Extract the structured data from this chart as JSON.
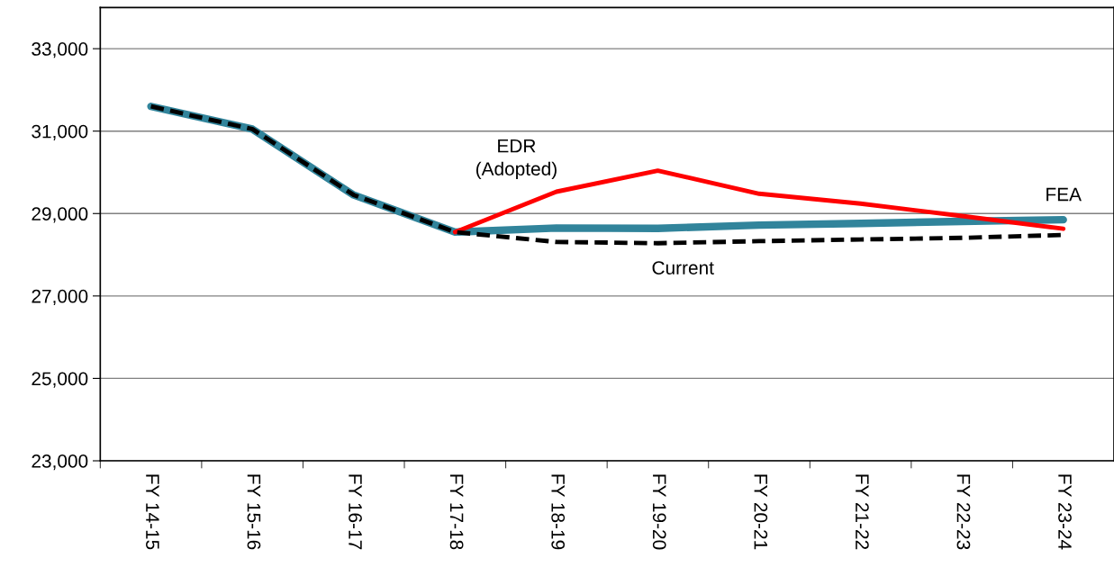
{
  "chart_data": {
    "type": "line",
    "categories": [
      "FY 14-15",
      "FY 15-16",
      "FY 16-17",
      "FY 17-18",
      "FY 18-19",
      "FY 19-20",
      "FY 20-21",
      "FY 21-22",
      "FY 22-23",
      "FY 23-24"
    ],
    "series": [
      {
        "name": "EDR\n(Adopted)",
        "color": "#ff0000",
        "line_style": "solid",
        "values": [
          null,
          null,
          null,
          28550,
          29530,
          30040,
          29480,
          29240,
          28940,
          28630
        ]
      },
      {
        "name": "FEA",
        "color": "#31849b",
        "line_style": "solid",
        "values": [
          31600,
          31050,
          29450,
          28550,
          28650,
          28640,
          28720,
          28760,
          28810,
          28850
        ]
      },
      {
        "name": "Current",
        "color": "#000000",
        "line_style": "dashed",
        "values": [
          31600,
          31050,
          29450,
          28550,
          28310,
          28280,
          28330,
          28370,
          28410,
          28480
        ]
      }
    ],
    "ylim": [
      23000,
      34000
    ],
    "yticks": [
      {
        "value": 23000,
        "label": "23,000"
      },
      {
        "value": 25000,
        "label": "25,000"
      },
      {
        "value": 27000,
        "label": "27,000"
      },
      {
        "value": 29000,
        "label": "29,000"
      },
      {
        "value": 31000,
        "label": "31,000"
      },
      {
        "value": 33000,
        "label": "33,000"
      }
    ],
    "grid": "y",
    "legend": false,
    "marker": "none"
  }
}
